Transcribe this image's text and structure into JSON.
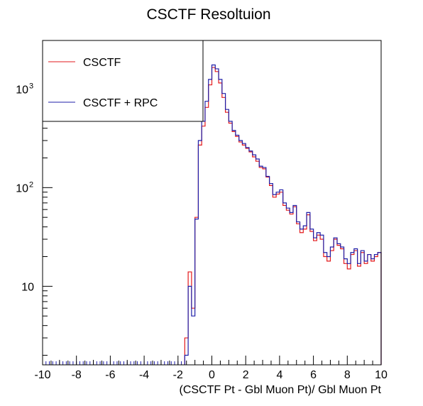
{
  "chart_data": {
    "type": "histogram",
    "title": "CSCTF Resoltuion",
    "xlabel": "(CSCTF Pt - Gbl Muon Pt)/ Gbl Muon Pt",
    "ylabel": "",
    "xlim": [
      -10,
      10
    ],
    "ylim": [
      1.6,
      3100
    ],
    "yscale": "log",
    "bin_width": 0.2,
    "grid": false,
    "legend_position": "top-left",
    "x_tick_labels": [
      "-10",
      "-8",
      "-6",
      "-4",
      "-2",
      "0",
      "2",
      "4",
      "6",
      "8",
      "10"
    ],
    "x_ticks": [
      -10,
      -8,
      -6,
      -4,
      -2,
      0,
      2,
      4,
      6,
      8,
      10
    ],
    "y_tick_labels": [
      "10",
      "10",
      "10"
    ],
    "y_tick_exponents": [
      "",
      "2",
      "3"
    ],
    "y_ticks": [
      10,
      100,
      1000
    ],
    "series": [
      {
        "name": "CSCTF",
        "color": "#e31a1c",
        "bin_starts": [
          -1.6,
          -1.4,
          -1.2,
          -1.0,
          -0.8,
          -0.6,
          -0.4,
          -0.2,
          0.0,
          0.2,
          0.4,
          0.6,
          0.8,
          1.0,
          1.2,
          1.4,
          1.6,
          1.8,
          2.0,
          2.2,
          2.4,
          2.6,
          2.8,
          3.0,
          3.2,
          3.4,
          3.6,
          3.8,
          4.0,
          4.2,
          4.4,
          4.6,
          4.8,
          5.0,
          5.2,
          5.4,
          5.6,
          5.8,
          6.0,
          6.2,
          6.4,
          6.6,
          6.8,
          7.0,
          7.2,
          7.4,
          7.6,
          7.8,
          8.0,
          8.2,
          8.4,
          8.6,
          8.8,
          9.0,
          9.2,
          9.4,
          9.6,
          9.8
        ],
        "values": [
          3,
          14,
          6,
          50,
          270,
          420,
          650,
          1100,
          1650,
          1500,
          1150,
          820,
          580,
          450,
          370,
          330,
          290,
          270,
          250,
          230,
          205,
          185,
          160,
          155,
          128,
          105,
          80,
          86,
          90,
          66,
          59,
          54,
          64,
          43,
          35,
          38,
          53,
          36,
          29,
          33,
          30,
          20,
          18,
          23,
          30,
          26,
          24,
          17,
          15,
          21,
          23,
          16,
          22,
          17,
          21,
          18,
          20,
          22
        ]
      },
      {
        "name": "CSCTF + RPC",
        "color": "#1f1fa8",
        "bin_starts": [
          -1.6,
          -1.4,
          -1.2,
          -1.0,
          -0.8,
          -0.6,
          -0.4,
          -0.2,
          0.0,
          0.2,
          0.4,
          0.6,
          0.8,
          1.0,
          1.2,
          1.4,
          1.6,
          1.8,
          2.0,
          2.2,
          2.4,
          2.6,
          2.8,
          3.0,
          3.2,
          3.4,
          3.6,
          3.8,
          4.0,
          4.2,
          4.4,
          4.6,
          4.8,
          5.0,
          5.2,
          5.4,
          5.6,
          5.8,
          6.0,
          6.2,
          6.4,
          6.6,
          6.8,
          7.0,
          7.2,
          7.4,
          7.6,
          7.8,
          8.0,
          8.2,
          8.4,
          8.6,
          8.8,
          9.0,
          9.2,
          9.4,
          9.6,
          9.8
        ],
        "values": [
          2,
          10,
          5,
          48,
          300,
          470,
          750,
          1250,
          1750,
          1600,
          1250,
          900,
          620,
          470,
          380,
          340,
          300,
          280,
          255,
          235,
          215,
          195,
          165,
          160,
          130,
          110,
          85,
          90,
          95,
          70,
          62,
          56,
          66,
          45,
          38,
          41,
          56,
          38,
          31,
          35,
          33,
          22,
          20,
          25,
          31,
          27,
          25,
          19,
          17,
          22,
          24,
          17,
          23,
          18,
          21,
          19,
          21,
          22
        ]
      }
    ]
  }
}
